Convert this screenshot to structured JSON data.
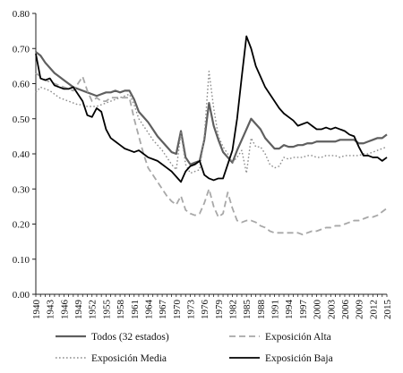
{
  "chart_data": {
    "type": "line",
    "title": "",
    "xlabel": "",
    "ylabel": "",
    "ylim": [
      0,
      0.8
    ],
    "y_ticks": [
      "0.00",
      "0.10",
      "0.20",
      "0.30",
      "0.40",
      "0.50",
      "0.60",
      "0.70",
      "0.80"
    ],
    "xlim": [
      1940,
      2015
    ],
    "x_ticks": [
      "1940",
      "1943",
      "1946",
      "1949",
      "1952",
      "1955",
      "1958",
      "1961",
      "1964",
      "1967",
      "1970",
      "1973",
      "1976",
      "1979",
      "1982",
      "1985",
      "1988",
      "1991",
      "1994",
      "1997",
      "2000",
      "2003",
      "2006",
      "2009",
      "2012",
      "2015"
    ],
    "grid": false,
    "legend_position": "bottom",
    "colors": {
      "todos": "#5f5f5f",
      "alta": "#a8a8a8",
      "media": "#8c8c8c",
      "baja": "#000000"
    },
    "series": [
      {
        "name": "Todos (32 estados)",
        "style": "solid",
        "points": [
          [
            1940,
            0.69
          ],
          [
            1941,
            0.68
          ],
          [
            1942,
            0.66
          ],
          [
            1943,
            0.645
          ],
          [
            1944,
            0.63
          ],
          [
            1945,
            0.62
          ],
          [
            1946,
            0.61
          ],
          [
            1947,
            0.6
          ],
          [
            1948,
            0.59
          ],
          [
            1949,
            0.585
          ],
          [
            1950,
            0.58
          ],
          [
            1951,
            0.575
          ],
          [
            1952,
            0.57
          ],
          [
            1953,
            0.565
          ],
          [
            1954,
            0.57
          ],
          [
            1955,
            0.575
          ],
          [
            1956,
            0.575
          ],
          [
            1957,
            0.58
          ],
          [
            1958,
            0.575
          ],
          [
            1959,
            0.58
          ],
          [
            1960,
            0.58
          ],
          [
            1961,
            0.555
          ],
          [
            1962,
            0.52
          ],
          [
            1963,
            0.505
          ],
          [
            1964,
            0.49
          ],
          [
            1965,
            0.47
          ],
          [
            1966,
            0.45
          ],
          [
            1967,
            0.435
          ],
          [
            1968,
            0.42
          ],
          [
            1969,
            0.405
          ],
          [
            1970,
            0.4
          ],
          [
            1971,
            0.465
          ],
          [
            1972,
            0.39
          ],
          [
            1973,
            0.37
          ],
          [
            1974,
            0.375
          ],
          [
            1975,
            0.38
          ],
          [
            1976,
            0.44
          ],
          [
            1977,
            0.545
          ],
          [
            1978,
            0.48
          ],
          [
            1979,
            0.44
          ],
          [
            1980,
            0.405
          ],
          [
            1981,
            0.39
          ],
          [
            1982,
            0.375
          ],
          [
            1983,
            0.41
          ],
          [
            1984,
            0.44
          ],
          [
            1985,
            0.47
          ],
          [
            1986,
            0.5
          ],
          [
            1987,
            0.485
          ],
          [
            1988,
            0.47
          ],
          [
            1989,
            0.445
          ],
          [
            1990,
            0.43
          ],
          [
            1991,
            0.415
          ],
          [
            1992,
            0.415
          ],
          [
            1993,
            0.425
          ],
          [
            1994,
            0.42
          ],
          [
            1995,
            0.42
          ],
          [
            1996,
            0.425
          ],
          [
            1997,
            0.425
          ],
          [
            1998,
            0.43
          ],
          [
            1999,
            0.43
          ],
          [
            2000,
            0.435
          ],
          [
            2001,
            0.435
          ],
          [
            2002,
            0.435
          ],
          [
            2003,
            0.435
          ],
          [
            2004,
            0.435
          ],
          [
            2005,
            0.44
          ],
          [
            2006,
            0.44
          ],
          [
            2007,
            0.44
          ],
          [
            2008,
            0.44
          ],
          [
            2009,
            0.43
          ],
          [
            2010,
            0.43
          ],
          [
            2011,
            0.435
          ],
          [
            2012,
            0.44
          ],
          [
            2013,
            0.445
          ],
          [
            2014,
            0.445
          ],
          [
            2015,
            0.455
          ]
        ]
      },
      {
        "name": "Exposición Alta",
        "style": "dashed",
        "points": [
          [
            1940,
            0.63
          ],
          [
            1942,
            0.61
          ],
          [
            1944,
            0.6
          ],
          [
            1946,
            0.59
          ],
          [
            1948,
            0.58
          ],
          [
            1949,
            0.6
          ],
          [
            1950,
            0.62
          ],
          [
            1951,
            0.58
          ],
          [
            1952,
            0.55
          ],
          [
            1953,
            0.56
          ],
          [
            1954,
            0.55
          ],
          [
            1955,
            0.55
          ],
          [
            1956,
            0.56
          ],
          [
            1957,
            0.56
          ],
          [
            1958,
            0.56
          ],
          [
            1959,
            0.56
          ],
          [
            1960,
            0.56
          ],
          [
            1961,
            0.5
          ],
          [
            1962,
            0.45
          ],
          [
            1963,
            0.4
          ],
          [
            1964,
            0.36
          ],
          [
            1965,
            0.34
          ],
          [
            1966,
            0.32
          ],
          [
            1967,
            0.3
          ],
          [
            1968,
            0.28
          ],
          [
            1969,
            0.265
          ],
          [
            1970,
            0.255
          ],
          [
            1971,
            0.28
          ],
          [
            1972,
            0.24
          ],
          [
            1973,
            0.23
          ],
          [
            1974,
            0.225
          ],
          [
            1975,
            0.23
          ],
          [
            1976,
            0.26
          ],
          [
            1977,
            0.3
          ],
          [
            1978,
            0.25
          ],
          [
            1979,
            0.22
          ],
          [
            1980,
            0.23
          ],
          [
            1981,
            0.29
          ],
          [
            1982,
            0.245
          ],
          [
            1983,
            0.21
          ],
          [
            1984,
            0.205
          ],
          [
            1985,
            0.21
          ],
          [
            1986,
            0.21
          ],
          [
            1987,
            0.205
          ],
          [
            1988,
            0.195
          ],
          [
            1989,
            0.19
          ],
          [
            1990,
            0.18
          ],
          [
            1991,
            0.175
          ],
          [
            1992,
            0.175
          ],
          [
            1993,
            0.175
          ],
          [
            1994,
            0.175
          ],
          [
            1995,
            0.175
          ],
          [
            1996,
            0.175
          ],
          [
            1997,
            0.17
          ],
          [
            1998,
            0.175
          ],
          [
            1999,
            0.18
          ],
          [
            2000,
            0.18
          ],
          [
            2001,
            0.185
          ],
          [
            2002,
            0.19
          ],
          [
            2003,
            0.19
          ],
          [
            2004,
            0.195
          ],
          [
            2005,
            0.195
          ],
          [
            2006,
            0.2
          ],
          [
            2007,
            0.205
          ],
          [
            2008,
            0.21
          ],
          [
            2009,
            0.21
          ],
          [
            2010,
            0.215
          ],
          [
            2011,
            0.22
          ],
          [
            2012,
            0.22
          ],
          [
            2013,
            0.225
          ],
          [
            2014,
            0.235
          ],
          [
            2015,
            0.245
          ]
        ]
      },
      {
        "name": "Exposición Media",
        "style": "dotted",
        "points": [
          [
            1940,
            0.575
          ],
          [
            1941,
            0.59
          ],
          [
            1942,
            0.585
          ],
          [
            1943,
            0.58
          ],
          [
            1944,
            0.57
          ],
          [
            1945,
            0.56
          ],
          [
            1946,
            0.555
          ],
          [
            1947,
            0.55
          ],
          [
            1948,
            0.545
          ],
          [
            1949,
            0.54
          ],
          [
            1950,
            0.54
          ],
          [
            1951,
            0.535
          ],
          [
            1952,
            0.535
          ],
          [
            1953,
            0.535
          ],
          [
            1954,
            0.54
          ],
          [
            1955,
            0.545
          ],
          [
            1956,
            0.55
          ],
          [
            1957,
            0.555
          ],
          [
            1958,
            0.56
          ],
          [
            1959,
            0.565
          ],
          [
            1960,
            0.57
          ],
          [
            1961,
            0.54
          ],
          [
            1962,
            0.5
          ],
          [
            1963,
            0.48
          ],
          [
            1964,
            0.46
          ],
          [
            1965,
            0.44
          ],
          [
            1966,
            0.425
          ],
          [
            1967,
            0.41
          ],
          [
            1968,
            0.39
          ],
          [
            1969,
            0.37
          ],
          [
            1970,
            0.355
          ],
          [
            1971,
            0.46
          ],
          [
            1972,
            0.37
          ],
          [
            1973,
            0.345
          ],
          [
            1974,
            0.35
          ],
          [
            1975,
            0.355
          ],
          [
            1976,
            0.45
          ],
          [
            1977,
            0.635
          ],
          [
            1978,
            0.53
          ],
          [
            1979,
            0.45
          ],
          [
            1980,
            0.42
          ],
          [
            1981,
            0.4
          ],
          [
            1982,
            0.375
          ],
          [
            1983,
            0.39
          ],
          [
            1984,
            0.41
          ],
          [
            1985,
            0.345
          ],
          [
            1986,
            0.445
          ],
          [
            1987,
            0.42
          ],
          [
            1988,
            0.42
          ],
          [
            1989,
            0.4
          ],
          [
            1990,
            0.37
          ],
          [
            1991,
            0.36
          ],
          [
            1992,
            0.365
          ],
          [
            1993,
            0.39
          ],
          [
            1994,
            0.385
          ],
          [
            1995,
            0.39
          ],
          [
            1996,
            0.39
          ],
          [
            1997,
            0.39
          ],
          [
            1998,
            0.395
          ],
          [
            1999,
            0.395
          ],
          [
            2000,
            0.39
          ],
          [
            2001,
            0.39
          ],
          [
            2002,
            0.395
          ],
          [
            2003,
            0.395
          ],
          [
            2004,
            0.395
          ],
          [
            2005,
            0.39
          ],
          [
            2006,
            0.395
          ],
          [
            2007,
            0.395
          ],
          [
            2008,
            0.395
          ],
          [
            2009,
            0.395
          ],
          [
            2010,
            0.4
          ],
          [
            2011,
            0.4
          ],
          [
            2012,
            0.405
          ],
          [
            2013,
            0.41
          ],
          [
            2014,
            0.415
          ],
          [
            2015,
            0.42
          ]
        ]
      },
      {
        "name": "Exposición Baja",
        "style": "solid-bold",
        "points": [
          [
            1940,
            0.685
          ],
          [
            1941,
            0.615
          ],
          [
            1942,
            0.61
          ],
          [
            1943,
            0.615
          ],
          [
            1944,
            0.595
          ],
          [
            1945,
            0.59
          ],
          [
            1946,
            0.585
          ],
          [
            1947,
            0.585
          ],
          [
            1948,
            0.59
          ],
          [
            1949,
            0.57
          ],
          [
            1950,
            0.55
          ],
          [
            1951,
            0.51
          ],
          [
            1952,
            0.505
          ],
          [
            1953,
            0.53
          ],
          [
            1954,
            0.52
          ],
          [
            1955,
            0.47
          ],
          [
            1956,
            0.445
          ],
          [
            1957,
            0.435
          ],
          [
            1958,
            0.425
          ],
          [
            1959,
            0.415
          ],
          [
            1960,
            0.41
          ],
          [
            1961,
            0.405
          ],
          [
            1962,
            0.41
          ],
          [
            1963,
            0.4
          ],
          [
            1964,
            0.39
          ],
          [
            1965,
            0.385
          ],
          [
            1966,
            0.38
          ],
          [
            1967,
            0.37
          ],
          [
            1968,
            0.36
          ],
          [
            1969,
            0.35
          ],
          [
            1970,
            0.335
          ],
          [
            1971,
            0.32
          ],
          [
            1972,
            0.35
          ],
          [
            1973,
            0.365
          ],
          [
            1974,
            0.37
          ],
          [
            1975,
            0.38
          ],
          [
            1976,
            0.34
          ],
          [
            1977,
            0.33
          ],
          [
            1978,
            0.325
          ],
          [
            1979,
            0.33
          ],
          [
            1980,
            0.33
          ],
          [
            1981,
            0.37
          ],
          [
            1982,
            0.41
          ],
          [
            1983,
            0.5
          ],
          [
            1984,
            0.62
          ],
          [
            1985,
            0.735
          ],
          [
            1986,
            0.7
          ],
          [
            1987,
            0.65
          ],
          [
            1988,
            0.62
          ],
          [
            1989,
            0.59
          ],
          [
            1990,
            0.57
          ],
          [
            1991,
            0.55
          ],
          [
            1992,
            0.53
          ],
          [
            1993,
            0.515
          ],
          [
            1994,
            0.505
          ],
          [
            1995,
            0.495
          ],
          [
            1996,
            0.48
          ],
          [
            1997,
            0.485
          ],
          [
            1998,
            0.49
          ],
          [
            1999,
            0.48
          ],
          [
            2000,
            0.47
          ],
          [
            2001,
            0.47
          ],
          [
            2002,
            0.475
          ],
          [
            2003,
            0.47
          ],
          [
            2004,
            0.475
          ],
          [
            2005,
            0.47
          ],
          [
            2006,
            0.465
          ],
          [
            2007,
            0.455
          ],
          [
            2008,
            0.45
          ],
          [
            2009,
            0.42
          ],
          [
            2010,
            0.395
          ],
          [
            2011,
            0.395
          ],
          [
            2012,
            0.39
          ],
          [
            2013,
            0.39
          ],
          [
            2014,
            0.38
          ],
          [
            2015,
            0.39
          ]
        ]
      }
    ]
  }
}
